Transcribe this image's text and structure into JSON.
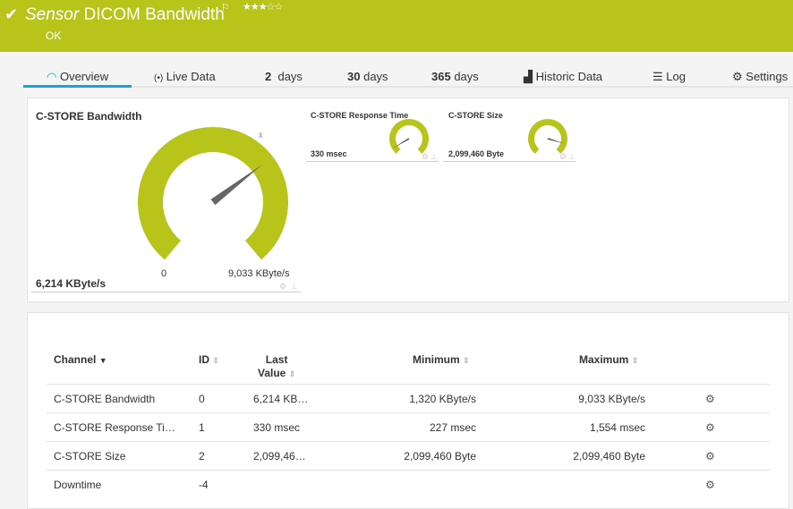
{
  "header": {
    "status_icon": "checkmark-icon",
    "prefix": "Sensor",
    "title": "DICOM Bandwidth",
    "flag_icon": "flag-icon",
    "stars": "★★★☆☆",
    "priority": 3,
    "status": "OK",
    "color": "#b8c41a"
  },
  "tabs": [
    {
      "label": "Overview",
      "icon": "gauge-icon",
      "active": true
    },
    {
      "label": "Live Data",
      "icon": "live-icon"
    },
    {
      "num": "2",
      "label": "days"
    },
    {
      "num": "30",
      "label": "days"
    },
    {
      "num": "365",
      "label": "days"
    },
    {
      "label": "Historic Data",
      "icon": "chart-icon"
    },
    {
      "label": "Log",
      "icon": "list-icon"
    },
    {
      "label": "Settings",
      "icon": "gear-icon"
    }
  ],
  "gauges": {
    "main": {
      "title": "C-STORE Bandwidth",
      "value": "6,214 KByte/s",
      "min": "0",
      "max": "9,033 KByte/s",
      "fraction": 0.688,
      "avg_marker": "x̄"
    },
    "small": [
      {
        "title": "C-STORE Response Time",
        "value": "330 msec",
        "fraction": 0.07
      },
      {
        "title": "C-STORE Size",
        "value": "2,099,460 Byte",
        "fraction": 0.88
      }
    ]
  },
  "table": {
    "headers": {
      "channel": "Channel",
      "id": "ID",
      "last1": "Last",
      "last2": "Value",
      "min": "Minimum",
      "max": "Maximum"
    },
    "rows": [
      {
        "channel": "C-STORE Bandwidth",
        "id": "0",
        "last": "6,214 KB…",
        "min": "1,320 KByte/s",
        "max": "9,033 KByte/s"
      },
      {
        "channel": "C-STORE Response Ti…",
        "id": "1",
        "last": "330 msec",
        "min": "227 msec",
        "max": "1,554 msec"
      },
      {
        "channel": "C-STORE Size",
        "id": "2",
        "last": "2,099,46…",
        "min": "2,099,460 Byte",
        "max": "2,099,460 Byte"
      },
      {
        "channel": "Downtime",
        "id": "-4",
        "last": "",
        "min": "",
        "max": ""
      }
    ]
  }
}
